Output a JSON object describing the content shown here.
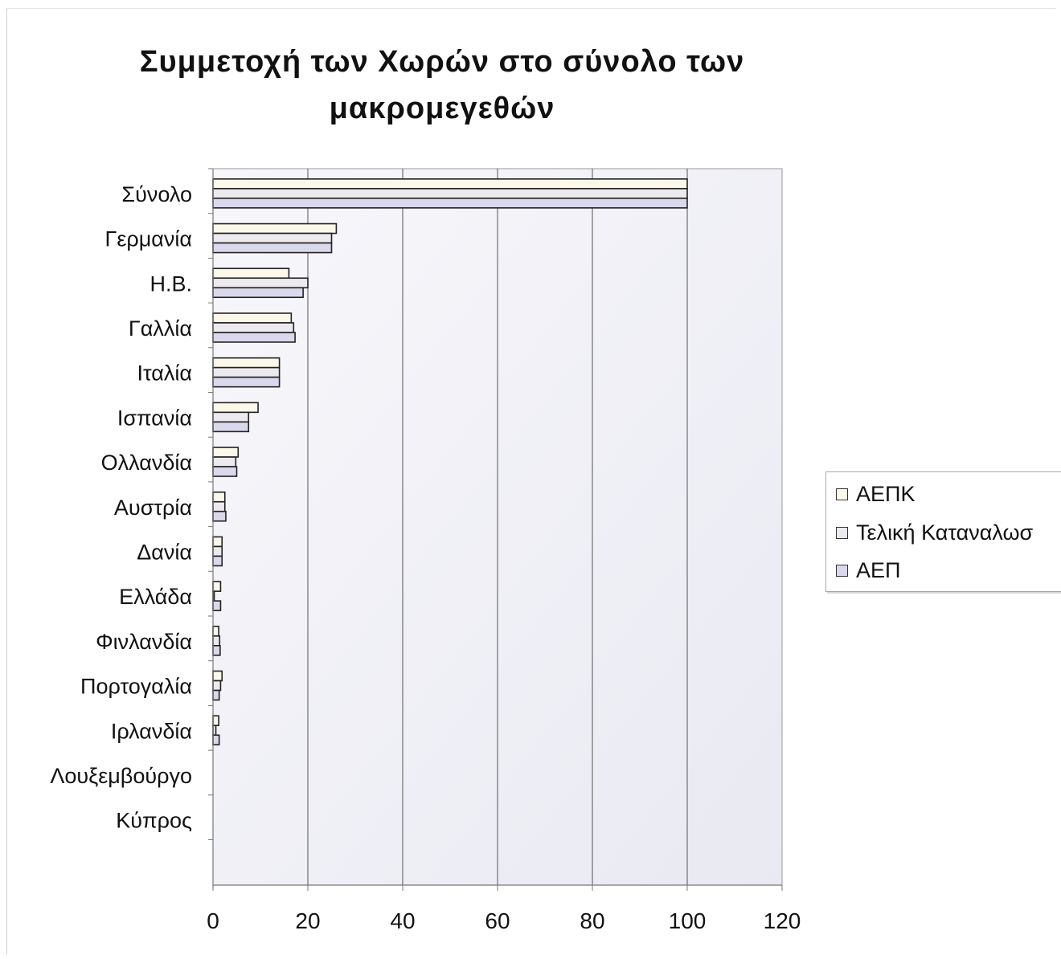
{
  "chart_data": {
    "type": "bar",
    "orientation": "horizontal",
    "title": "Συμμετοχή των Χωρών στο σύνολο των μακρομεγεθών",
    "title_lines": [
      "Συμμετοχή των Χωρών στο σύνολο των",
      "μακρομεγεθών"
    ],
    "categories": [
      "Σύνολο",
      "Γερμανία",
      "Η.Β.",
      "Γαλλία",
      "Ιταλία",
      "Ισπανία",
      "Ολλανδία",
      "Αυστρία",
      "Δανία",
      "Ελλάδα",
      "Φινλανδία",
      "Πορτογαλία",
      "Ιρλανδία",
      "Λουξεμβούργο",
      "Κύπρος"
    ],
    "series": [
      {
        "name": "ΑΕΠΚ",
        "color": "#fbf8ea",
        "values": [
          100,
          26,
          16,
          16.5,
          14,
          9.5,
          5.3,
          2.5,
          1.9,
          1.6,
          1.2,
          1.9,
          1.2,
          0,
          0
        ]
      },
      {
        "name": "Τελική Καταναλωση",
        "color": "#eceaee",
        "values": [
          100,
          25,
          20,
          17,
          14,
          7.5,
          4.8,
          2.5,
          1.9,
          0.2,
          1.4,
          1.6,
          0.6,
          0,
          0
        ]
      },
      {
        "name": "ΑΕΠ",
        "color": "#d9d8ec",
        "values": [
          100,
          25,
          19,
          17.3,
          14,
          7.5,
          5.0,
          2.7,
          1.9,
          1.6,
          1.5,
          1.3,
          1.3,
          0,
          0
        ]
      }
    ],
    "legend_labels": [
      "ΑΕΠΚ",
      "Τελική Καταναλωσ",
      "ΑΕΠ"
    ],
    "xlim": [
      0,
      120
    ],
    "xticks": [
      "0",
      "20",
      "40",
      "60",
      "80",
      "100",
      "120"
    ],
    "grid": "vertical",
    "legend_position": "right"
  },
  "colors": {
    "plot_background": "#f2f2f8",
    "gridline": "#555555",
    "bar_outline": "#222222"
  }
}
